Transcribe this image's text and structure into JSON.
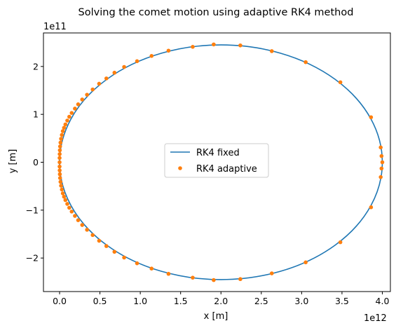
{
  "chart_data": {
    "type": "line",
    "title": "Solving the comet motion using adaptive RK4 method",
    "xlabel": "x [m]",
    "ylabel": "y [m]",
    "x_offset_text": "1e12",
    "y_offset_text": "1e11",
    "xlim": [
      -0.2,
      4.1
    ],
    "ylim": [
      -2.7,
      2.7
    ],
    "x_ticks": [
      0.0,
      0.5,
      1.0,
      1.5,
      2.0,
      2.5,
      3.0,
      3.5,
      4.0
    ],
    "x_tick_labels": [
      "0.0",
      "0.5",
      "1.0",
      "1.5",
      "2.0",
      "2.5",
      "3.0",
      "3.5",
      "4.0"
    ],
    "y_ticks": [
      -2,
      -1,
      0,
      1,
      2
    ],
    "y_tick_labels": [
      "−2",
      "−1",
      "0",
      "1",
      "2"
    ],
    "grid": false,
    "legend_position": "center",
    "series": [
      {
        "name": "RK4 fixed",
        "style": "line",
        "color": "#1f77b4",
        "shape": "ellipse",
        "center": [
          2.0,
          0.0
        ],
        "semi_axis_x": 2.0,
        "semi_axis_y": 2.45
      },
      {
        "name": "RK4 adaptive",
        "style": "markers",
        "color": "#ff7f0e",
        "points": [
          [
            4.0,
            0.0
          ],
          [
            3.99,
            0.13
          ],
          [
            3.98,
            0.31
          ],
          [
            3.86,
            0.94
          ],
          [
            3.48,
            1.67
          ],
          [
            3.05,
            2.09
          ],
          [
            2.63,
            2.32
          ],
          [
            2.24,
            2.44
          ],
          [
            1.91,
            2.46
          ],
          [
            1.65,
            2.41
          ],
          [
            1.35,
            2.33
          ],
          [
            1.14,
            2.22
          ],
          [
            0.96,
            2.11
          ],
          [
            0.8,
            1.99
          ],
          [
            0.68,
            1.87
          ],
          [
            0.58,
            1.75
          ],
          [
            0.49,
            1.64
          ],
          [
            0.41,
            1.52
          ],
          [
            0.34,
            1.41
          ],
          [
            0.28,
            1.31
          ],
          [
            0.23,
            1.21
          ],
          [
            0.19,
            1.12
          ],
          [
            0.15,
            1.03
          ],
          [
            0.12,
            0.95
          ],
          [
            0.095,
            0.87
          ],
          [
            0.072,
            0.79
          ],
          [
            0.055,
            0.72
          ],
          [
            0.04,
            0.65
          ],
          [
            0.028,
            0.57
          ],
          [
            0.018,
            0.49
          ],
          [
            0.011,
            0.41
          ],
          [
            0.006,
            0.33
          ],
          [
            0.003,
            0.25
          ],
          [
            0.001,
            0.17
          ],
          [
            0.0,
            0.09
          ],
          [
            0.0,
            0.0
          ],
          [
            0.0,
            -0.09
          ],
          [
            0.001,
            -0.17
          ],
          [
            0.003,
            -0.25
          ],
          [
            0.006,
            -0.33
          ],
          [
            0.011,
            -0.41
          ],
          [
            0.018,
            -0.49
          ],
          [
            0.028,
            -0.57
          ],
          [
            0.04,
            -0.65
          ],
          [
            0.055,
            -0.72
          ],
          [
            0.072,
            -0.79
          ],
          [
            0.095,
            -0.87
          ],
          [
            0.12,
            -0.95
          ],
          [
            0.15,
            -1.03
          ],
          [
            0.19,
            -1.12
          ],
          [
            0.23,
            -1.21
          ],
          [
            0.28,
            -1.31
          ],
          [
            0.34,
            -1.41
          ],
          [
            0.41,
            -1.52
          ],
          [
            0.49,
            -1.64
          ],
          [
            0.58,
            -1.75
          ],
          [
            0.68,
            -1.87
          ],
          [
            0.8,
            -1.99
          ],
          [
            0.96,
            -2.11
          ],
          [
            1.14,
            -2.22
          ],
          [
            1.35,
            -2.33
          ],
          [
            1.65,
            -2.41
          ],
          [
            1.91,
            -2.46
          ],
          [
            2.24,
            -2.44
          ],
          [
            2.63,
            -2.32
          ],
          [
            3.05,
            -2.09
          ],
          [
            3.48,
            -1.67
          ],
          [
            3.86,
            -0.94
          ],
          [
            3.98,
            -0.31
          ],
          [
            3.99,
            -0.13
          ]
        ]
      }
    ]
  }
}
